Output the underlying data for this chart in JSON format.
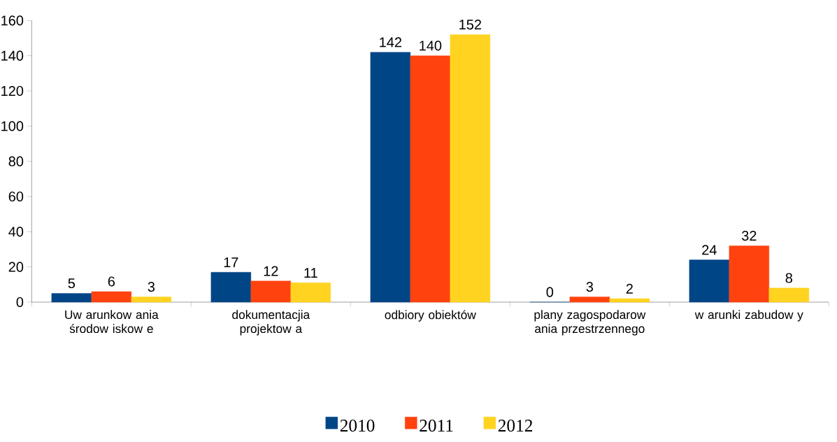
{
  "chart_data": {
    "type": "bar",
    "categories": [
      "Uw arunkow ania środow iskow e",
      "dokumentacjia projektow a",
      "odbiory obiektów",
      "plany zagospodarow ania przestrzennego",
      "w arunki zabudow y"
    ],
    "series": [
      {
        "name": "2010",
        "color": "#004586",
        "values": [
          5,
          17,
          142,
          0,
          24
        ]
      },
      {
        "name": "2011",
        "color": "#ff420e",
        "values": [
          6,
          12,
          140,
          3,
          32
        ]
      },
      {
        "name": "2012",
        "color": "#ffd320",
        "values": [
          3,
          11,
          152,
          2,
          8
        ]
      }
    ],
    "ylim": [
      0,
      160
    ],
    "yticks": [
      0,
      20,
      40,
      60,
      80,
      100,
      120,
      140,
      160
    ],
    "data_labels": true,
    "legend": "bottom"
  }
}
